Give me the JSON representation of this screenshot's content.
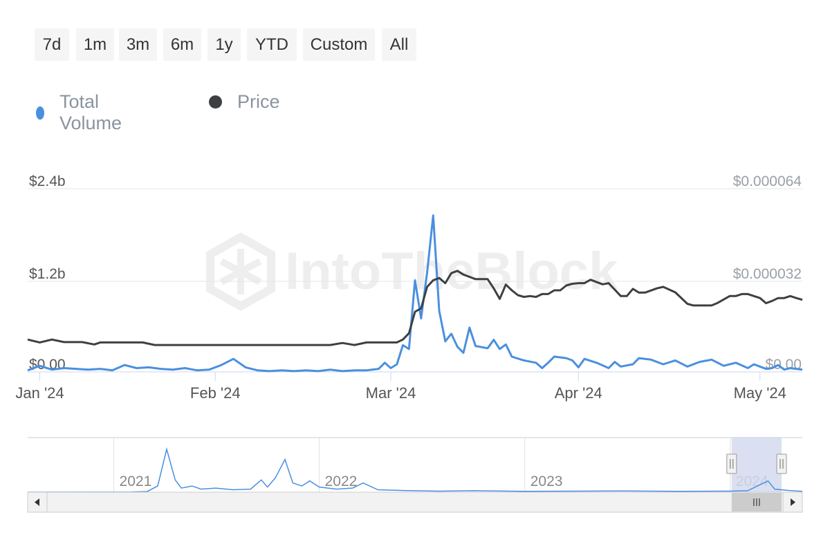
{
  "toolbar": {
    "ranges": [
      "7d",
      "1m",
      "3m",
      "6m",
      "1y",
      "YTD",
      "Custom",
      "All"
    ]
  },
  "legend": [
    {
      "label": "Total Volume",
      "color": "#4a8fdf"
    },
    {
      "label": "Price",
      "color": "#3d4042"
    }
  ],
  "colors": {
    "volume": "#4a8fdf",
    "price": "#3d4042",
    "navigator_selection": "#d3dbef",
    "watermark": "#eeeeee"
  },
  "watermark": "IntoTheBlock",
  "chart_data": {
    "type": "line",
    "x_range": [
      "2024-01-01",
      "2024-05-08"
    ],
    "x_ticks": [
      {
        "date": "2024-01-03",
        "label": "Jan '24"
      },
      {
        "date": "2024-02-01",
        "label": "Feb '24"
      },
      {
        "date": "2024-03-01",
        "label": "Mar '24"
      },
      {
        "date": "2024-04-01",
        "label": "Apr '24"
      },
      {
        "date": "2024-05-01",
        "label": "May '24"
      }
    ],
    "y_left": {
      "ticks": [
        "$0.00",
        "$1.2b",
        "$2.4b"
      ],
      "range": [
        0,
        2.4
      ],
      "unit": "b"
    },
    "y_right": {
      "ticks": [
        "$0.00",
        "$0.000032",
        "$0.000064"
      ],
      "range": [
        0,
        6.4e-05
      ]
    },
    "grid": true,
    "legend_position": "top-left",
    "series": [
      {
        "name": "Total Volume",
        "axis": "left",
        "points": [
          [
            "2024-01-01",
            0.02
          ],
          [
            "2024-01-03",
            0.08
          ],
          [
            "2024-01-05",
            0.03
          ],
          [
            "2024-01-07",
            0.05
          ],
          [
            "2024-01-09",
            0.04
          ],
          [
            "2024-01-11",
            0.03
          ],
          [
            "2024-01-13",
            0.04
          ],
          [
            "2024-01-15",
            0.02
          ],
          [
            "2024-01-17",
            0.09
          ],
          [
            "2024-01-19",
            0.05
          ],
          [
            "2024-01-21",
            0.06
          ],
          [
            "2024-01-23",
            0.04
          ],
          [
            "2024-01-25",
            0.03
          ],
          [
            "2024-01-27",
            0.05
          ],
          [
            "2024-01-29",
            0.02
          ],
          [
            "2024-01-31",
            0.03
          ],
          [
            "2024-02-02",
            0.09
          ],
          [
            "2024-02-04",
            0.17
          ],
          [
            "2024-02-06",
            0.06
          ],
          [
            "2024-02-08",
            0.02
          ],
          [
            "2024-02-10",
            0.01
          ],
          [
            "2024-02-12",
            0.02
          ],
          [
            "2024-02-14",
            0.01
          ],
          [
            "2024-02-16",
            0.02
          ],
          [
            "2024-02-18",
            0.01
          ],
          [
            "2024-02-20",
            0.03
          ],
          [
            "2024-02-22",
            0.01
          ],
          [
            "2024-02-24",
            0.02
          ],
          [
            "2024-02-26",
            0.02
          ],
          [
            "2024-02-28",
            0.04
          ],
          [
            "2024-02-29",
            0.12
          ],
          [
            "2024-03-01",
            0.05
          ],
          [
            "2024-03-02",
            0.1
          ],
          [
            "2024-03-03",
            0.35
          ],
          [
            "2024-03-04",
            0.3
          ],
          [
            "2024-03-05",
            1.2
          ],
          [
            "2024-03-06",
            0.7
          ],
          [
            "2024-03-07",
            1.3
          ],
          [
            "2024-03-08",
            2.05
          ],
          [
            "2024-03-09",
            0.8
          ],
          [
            "2024-03-10",
            0.4
          ],
          [
            "2024-03-11",
            0.5
          ],
          [
            "2024-03-12",
            0.33
          ],
          [
            "2024-03-13",
            0.25
          ],
          [
            "2024-03-14",
            0.58
          ],
          [
            "2024-03-15",
            0.34
          ],
          [
            "2024-03-17",
            0.31
          ],
          [
            "2024-03-18",
            0.42
          ],
          [
            "2024-03-19",
            0.3
          ],
          [
            "2024-03-20",
            0.36
          ],
          [
            "2024-03-21",
            0.2
          ],
          [
            "2024-03-23",
            0.15
          ],
          [
            "2024-03-25",
            0.12
          ],
          [
            "2024-03-26",
            0.05
          ],
          [
            "2024-03-27",
            0.12
          ],
          [
            "2024-03-28",
            0.2
          ],
          [
            "2024-03-30",
            0.18
          ],
          [
            "2024-03-31",
            0.15
          ],
          [
            "2024-04-01",
            0.06
          ],
          [
            "2024-04-02",
            0.17
          ],
          [
            "2024-04-04",
            0.12
          ],
          [
            "2024-04-06",
            0.05
          ],
          [
            "2024-04-07",
            0.13
          ],
          [
            "2024-04-08",
            0.07
          ],
          [
            "2024-04-10",
            0.1
          ],
          [
            "2024-04-11",
            0.18
          ],
          [
            "2024-04-13",
            0.16
          ],
          [
            "2024-04-15",
            0.1
          ],
          [
            "2024-04-17",
            0.15
          ],
          [
            "2024-04-19",
            0.07
          ],
          [
            "2024-04-21",
            0.13
          ],
          [
            "2024-04-23",
            0.16
          ],
          [
            "2024-04-25",
            0.08
          ],
          [
            "2024-04-27",
            0.12
          ],
          [
            "2024-04-29",
            0.05
          ],
          [
            "2024-04-30",
            0.1
          ],
          [
            "2024-05-01",
            0.07
          ],
          [
            "2024-05-02",
            0.04
          ],
          [
            "2024-05-03",
            0.05
          ],
          [
            "2024-05-04",
            0.09
          ],
          [
            "2024-05-05",
            0.03
          ],
          [
            "2024-05-06",
            0.05
          ],
          [
            "2024-05-07",
            0.04
          ],
          [
            "2024-05-08",
            0.03
          ]
        ]
      },
      {
        "name": "Price",
        "axis": "right",
        "points": [
          [
            "2024-01-01",
            1.13e-05
          ],
          [
            "2024-01-03",
            1.03e-05
          ],
          [
            "2024-01-05",
            1.13e-05
          ],
          [
            "2024-01-07",
            1.04e-05
          ],
          [
            "2024-01-10",
            1.04e-05
          ],
          [
            "2024-01-12",
            9.6e-06
          ],
          [
            "2024-01-13",
            1.03e-05
          ],
          [
            "2024-01-20",
            1.03e-05
          ],
          [
            "2024-01-22",
            9.4e-06
          ],
          [
            "2024-01-31",
            9.4e-06
          ],
          [
            "2024-02-10",
            9.4e-06
          ],
          [
            "2024-02-20",
            9.4e-06
          ],
          [
            "2024-02-22",
            1.01e-05
          ],
          [
            "2024-02-24",
            9.4e-06
          ],
          [
            "2024-02-26",
            1.03e-05
          ],
          [
            "2024-02-29",
            1.03e-05
          ],
          [
            "2024-03-01",
            1.03e-05
          ],
          [
            "2024-03-02",
            1.03e-05
          ],
          [
            "2024-03-03",
            1.13e-05
          ],
          [
            "2024-03-04",
            1.35e-05
          ],
          [
            "2024-03-05",
            2.1e-05
          ],
          [
            "2024-03-06",
            2.22e-05
          ],
          [
            "2024-03-07",
            2.97e-05
          ],
          [
            "2024-03-08",
            3.2e-05
          ],
          [
            "2024-03-09",
            3.28e-05
          ],
          [
            "2024-03-10",
            3.1e-05
          ],
          [
            "2024-03-11",
            3.45e-05
          ],
          [
            "2024-03-12",
            3.53e-05
          ],
          [
            "2024-03-13",
            3.4e-05
          ],
          [
            "2024-03-14",
            3.32e-05
          ],
          [
            "2024-03-15",
            3.24e-05
          ],
          [
            "2024-03-17",
            3.24e-05
          ],
          [
            "2024-03-18",
            2.92e-05
          ],
          [
            "2024-03-19",
            2.55e-05
          ],
          [
            "2024-03-20",
            3.05e-05
          ],
          [
            "2024-03-21",
            2.85e-05
          ],
          [
            "2024-03-22",
            2.68e-05
          ],
          [
            "2024-03-23",
            2.62e-05
          ],
          [
            "2024-03-24",
            2.65e-05
          ],
          [
            "2024-03-25",
            2.62e-05
          ],
          [
            "2024-03-26",
            2.72e-05
          ],
          [
            "2024-03-27",
            2.72e-05
          ],
          [
            "2024-03-28",
            2.85e-05
          ],
          [
            "2024-03-29",
            2.85e-05
          ],
          [
            "2024-03-30",
            3.02e-05
          ],
          [
            "2024-03-31",
            3.08e-05
          ],
          [
            "2024-04-01",
            3.1e-05
          ],
          [
            "2024-04-02",
            3.1e-05
          ],
          [
            "2024-04-03",
            3.22e-05
          ],
          [
            "2024-04-05",
            3.06e-05
          ],
          [
            "2024-04-06",
            3.1e-05
          ],
          [
            "2024-04-08",
            2.65e-05
          ],
          [
            "2024-04-09",
            2.65e-05
          ],
          [
            "2024-04-10",
            2.9e-05
          ],
          [
            "2024-04-11",
            2.77e-05
          ],
          [
            "2024-04-12",
            2.77e-05
          ],
          [
            "2024-04-14",
            2.92e-05
          ],
          [
            "2024-04-15",
            2.97e-05
          ],
          [
            "2024-04-17",
            2.78e-05
          ],
          [
            "2024-04-19",
            2.38e-05
          ],
          [
            "2024-04-20",
            2.32e-05
          ],
          [
            "2024-04-23",
            2.32e-05
          ],
          [
            "2024-04-24",
            2.41e-05
          ],
          [
            "2024-04-26",
            2.65e-05
          ],
          [
            "2024-04-27",
            2.65e-05
          ],
          [
            "2024-04-28",
            2.72e-05
          ],
          [
            "2024-04-29",
            2.72e-05
          ],
          [
            "2024-04-30",
            2.65e-05
          ],
          [
            "2024-05-01",
            2.58e-05
          ],
          [
            "2024-05-02",
            2.4e-05
          ],
          [
            "2024-05-03",
            2.48e-05
          ],
          [
            "2024-05-04",
            2.58e-05
          ],
          [
            "2024-05-05",
            2.58e-05
          ],
          [
            "2024-05-06",
            2.65e-05
          ],
          [
            "2024-05-07",
            2.58e-05
          ],
          [
            "2024-05-08",
            2.52e-05
          ]
        ]
      }
    ],
    "navigator": {
      "years": [
        "2021",
        "2022",
        "2023",
        "2024"
      ],
      "range": [
        "2020-08-01",
        "2024-05-08"
      ],
      "selected_range": [
        "2024-01-01",
        "2024-05-08"
      ],
      "volume_points": [
        [
          "2020-08-01",
          0
        ],
        [
          "2021-02-01",
          0.01
        ],
        [
          "2021-03-01",
          0.03
        ],
        [
          "2021-03-20",
          0.3
        ],
        [
          "2021-04-05",
          2.1
        ],
        [
          "2021-04-20",
          0.6
        ],
        [
          "2021-05-01",
          0.2
        ],
        [
          "2021-05-20",
          0.3
        ],
        [
          "2021-06-05",
          0.15
        ],
        [
          "2021-07-01",
          0.2
        ],
        [
          "2021-08-01",
          0.12
        ],
        [
          "2021-09-01",
          0.15
        ],
        [
          "2021-09-20",
          0.6
        ],
        [
          "2021-10-01",
          0.25
        ],
        [
          "2021-10-15",
          0.7
        ],
        [
          "2021-11-01",
          1.6
        ],
        [
          "2021-11-15",
          0.45
        ],
        [
          "2021-12-01",
          0.3
        ],
        [
          "2021-12-15",
          0.55
        ],
        [
          "2022-01-01",
          0.25
        ],
        [
          "2022-02-01",
          0.15
        ],
        [
          "2022-03-01",
          0.2
        ],
        [
          "2022-03-20",
          0.45
        ],
        [
          "2022-04-15",
          0.12
        ],
        [
          "2022-06-01",
          0.08
        ],
        [
          "2022-08-01",
          0.05
        ],
        [
          "2022-10-01",
          0.07
        ],
        [
          "2023-01-01",
          0.04
        ],
        [
          "2023-04-01",
          0.05
        ],
        [
          "2023-07-01",
          0.06
        ],
        [
          "2023-10-01",
          0.04
        ],
        [
          "2024-01-01",
          0.05
        ],
        [
          "2024-02-01",
          0.07
        ],
        [
          "2024-03-08",
          0.55
        ],
        [
          "2024-03-20",
          0.15
        ],
        [
          "2024-04-15",
          0.08
        ],
        [
          "2024-05-08",
          0.04
        ]
      ]
    }
  }
}
